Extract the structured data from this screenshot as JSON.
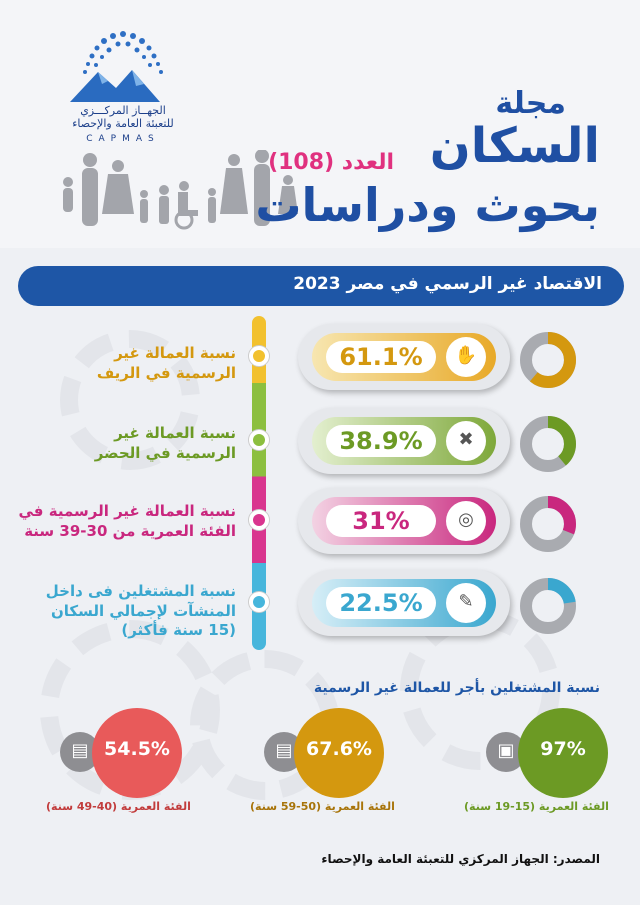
{
  "header": {
    "org_name_line1": "الجهــاز المركـــزي",
    "org_name_line2": "للتعبئة العامة والإحصاء",
    "org_abbr": "CAPMAS",
    "title_line1": "مجلة",
    "title_line2": "السكان",
    "issue": "العدد (108)",
    "title_line3": "بحوث ودراسات"
  },
  "banner": {
    "text": "الاقتصاد غير الرسمي في مصر 2023"
  },
  "stats": [
    {
      "label_line1": "نسبة العمالة غير",
      "label_line2": "الرسمية في الريف",
      "label_line3": "",
      "value": "61.1%",
      "percent": 61.1,
      "color": "#d4980f",
      "icon": "money-hand-icon"
    },
    {
      "label_line1": "نسبة العمالة غير",
      "label_line2": "الرسمية في الحضر",
      "label_line3": "",
      "value": "38.9%",
      "percent": 38.9,
      "color": "#6c9a24",
      "icon": "tools-icon"
    },
    {
      "label_line1": "نسبة العمالة غير الرسمية في",
      "label_line2": "الفئة  العمرية من 30-39 سنة",
      "label_line3": "",
      "value": "31%",
      "percent": 31,
      "color": "#c9277e",
      "icon": "target-icon"
    },
    {
      "label_line1": "نسبة المشتغلين فى داخل",
      "label_line2": "المنشآت لإجمالي السكان",
      "label_line3": "(15 سنة فأكثر)",
      "value": "22.5%",
      "percent": 22.5,
      "color": "#3aa7cf",
      "icon": "clipboard-icon"
    }
  ],
  "wage_section": {
    "title": "نسبة المشتغلين بأجر للعمالة غير الرسمية",
    "groups": [
      {
        "value": "97%",
        "percent": 97,
        "age_label": "الفئة العمرية",
        "age_range": "(15-19 سنة)",
        "color": "#6c9a24",
        "icon": "briefcase-icon"
      },
      {
        "value": "67.6%",
        "percent": 67.6,
        "age_label": "الفئة العمرية",
        "age_range": "(50-59 سنة)",
        "color": "#d4980f",
        "icon": "cash-icon"
      },
      {
        "value": "54.5%",
        "percent": 54.5,
        "age_label": "الفئة العمرية",
        "age_range": "(40-49 سنة)",
        "color": "#e85a5a",
        "icon": "cash-icon"
      }
    ]
  },
  "source": {
    "text": "المصدر: الجهاز المركزي للتعبئة العامة والإحصاء"
  }
}
